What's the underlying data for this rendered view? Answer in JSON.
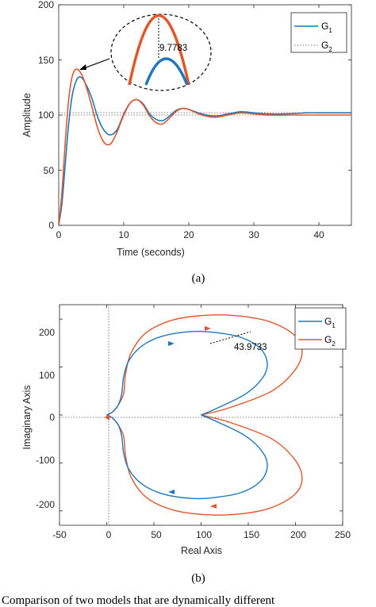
{
  "colors": {
    "g1": "#1f77c0",
    "g2": "#e0582a",
    "axis": "#262626",
    "ref": "#555555"
  },
  "chart_data": [
    {
      "type": "line",
      "xlabel": "Time (seconds)",
      "ylabel": "Amplitude",
      "xlim": [
        0,
        45
      ],
      "ylim": [
        0,
        200
      ],
      "xticks": [
        "0",
        "10",
        "20",
        "30",
        "40"
      ],
      "yticks": [
        "0",
        "50",
        "100",
        "150",
        "200"
      ],
      "legend": {
        "placement": "top-right",
        "items": [
          {
            "base": "G",
            "sub": "1"
          },
          {
            "base": "G",
            "sub": "2"
          }
        ]
      },
      "series": [
        {
          "name": "G1",
          "x": [
            0,
            0.5,
            1,
            1.5,
            2,
            2.5,
            3,
            3.5,
            4,
            5,
            6,
            7,
            8,
            9,
            10,
            11,
            12,
            13,
            14,
            15,
            16,
            17,
            18,
            19,
            20,
            22,
            24,
            26,
            28,
            30,
            32,
            35,
            38,
            41,
            45
          ],
          "y": [
            0,
            20,
            55,
            90,
            115,
            128,
            134,
            134,
            130,
            117,
            98,
            86,
            82,
            87,
            101,
            111,
            114,
            110,
            101,
            96,
            95,
            99,
            104,
            106,
            105,
            101,
            99,
            101,
            103,
            102,
            101,
            101,
            102,
            102,
            102
          ]
        },
        {
          "name": "G2",
          "x": [
            0,
            0.5,
            1,
            1.5,
            2,
            2.5,
            3,
            3.5,
            4,
            5,
            6,
            7,
            8,
            9,
            10,
            11,
            12,
            13,
            14,
            15,
            16,
            17,
            18,
            19,
            20,
            22,
            24,
            26,
            28,
            30,
            32,
            35,
            38,
            41,
            45
          ],
          "y": [
            0,
            30,
            75,
            112,
            133,
            141,
            141,
            137,
            130,
            110,
            88,
            75,
            74,
            85,
            100,
            111,
            114,
            109,
            99,
            93,
            92,
            97,
            103,
            106,
            105,
            100,
            98,
            100,
            102,
            101,
            100,
            100,
            100,
            100,
            100
          ]
        }
      ],
      "annotations": [
        {
          "text": "9.7783"
        }
      ]
    },
    {
      "type": "line",
      "xlabel": "Real Axis",
      "ylabel": "Imaginary Axis",
      "xlim": [
        -50,
        250
      ],
      "ylim": [
        -230,
        230
      ],
      "xticks": [
        "-50",
        "0",
        "50",
        "100",
        "150",
        "200",
        "250"
      ],
      "yticks": [
        "-200",
        "-100",
        "0",
        "100",
        "200"
      ],
      "legend": {
        "placement": "top-right",
        "items": [
          {
            "base": "G",
            "sub": "1"
          },
          {
            "base": "G",
            "sub": "2"
          }
        ]
      },
      "series": [
        {
          "name": "G1",
          "x": [
            100,
            118,
            148,
            166,
            170,
            162,
            142,
            115,
            90,
            60,
            38,
            24,
            18,
            16,
            12,
            6,
            1,
            0
          ],
          "y": [
            0,
            15,
            45,
            80,
            110,
            140,
            162,
            172,
            174,
            165,
            145,
            115,
            80,
            45,
            20,
            6,
            1,
            0
          ]
        },
        {
          "name": "G2",
          "x": [
            100,
            130,
            175,
            200,
            207,
            198,
            172,
            138,
            105,
            70,
            42,
            26,
            20,
            18,
            12,
            6,
            1,
            0
          ],
          "y": [
            0,
            15,
            50,
            95,
            135,
            168,
            195,
            207,
            208,
            198,
            172,
            130,
            85,
            45,
            20,
            6,
            1,
            0
          ]
        }
      ],
      "annotations": [
        {
          "text": "43.9733"
        }
      ]
    }
  ],
  "captions": [
    "(a)",
    "(b)"
  ],
  "footer_text": "Comparison of two models that are dynamically different"
}
